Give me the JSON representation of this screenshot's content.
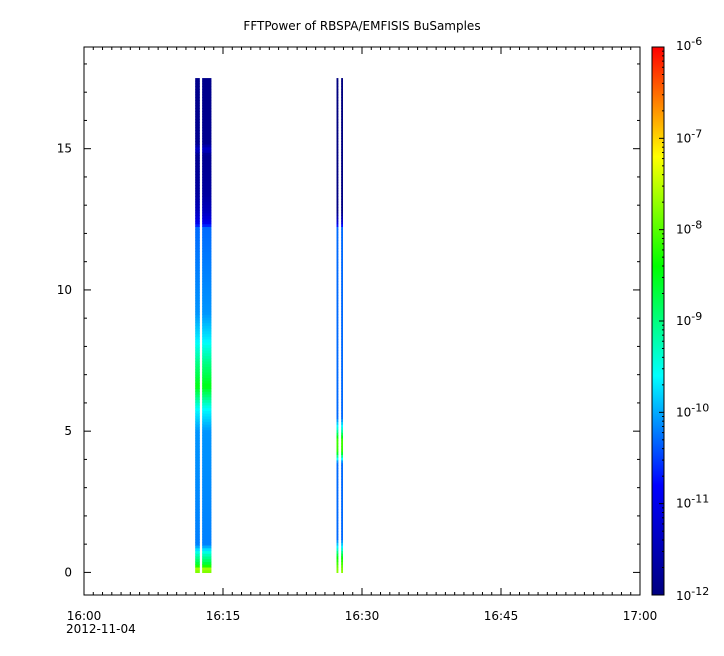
{
  "chart_data": {
    "type": "heatmap",
    "title": "FFTPower of RBSPA/EMFISIS  BuSamples",
    "xlabel": "",
    "ylabel": "",
    "x_axis": {
      "ticks": [
        "16:00",
        "16:15",
        "16:30",
        "16:45",
        "17:00"
      ],
      "date_label": "2012-11-04",
      "xlim": [
        "16:00",
        "17:00"
      ],
      "minor_tick_minutes": 1
    },
    "y_axis": {
      "ylim": [
        -0.8,
        18.6
      ],
      "ticks": [
        0,
        5,
        10,
        15
      ]
    },
    "colorbar": {
      "scale": "log",
      "range": [
        1e-12,
        1e-06
      ],
      "tick_bases": [
        "10",
        "10",
        "10",
        "10",
        "10",
        "10",
        "10"
      ],
      "tick_exponents": [
        "-12",
        "-11",
        "-10",
        "-9",
        "-8",
        "-7",
        "-6"
      ],
      "tick_values_log10": [
        -12,
        -11,
        -10,
        -9,
        -8,
        -7,
        -6
      ],
      "colormap": [
        "#000080",
        "#0000ff",
        "#00ffff",
        "#00ff00",
        "#ffff00",
        "#ff0000"
      ]
    },
    "series": [
      {
        "strips": [
          {
            "t_start": "16:12:00",
            "t_end": "16:12:30"
          },
          {
            "t_start": "16:12:45",
            "t_end": "16:13:45"
          }
        ],
        "f_max": 17.5,
        "profile": [
          {
            "f": 0.0,
            "log10_power": -8.0
          },
          {
            "f": 0.12,
            "log10_power": -7.5
          },
          {
            "f": 0.3,
            "log10_power": -8.6
          },
          {
            "f": 0.7,
            "log10_power": -9.4
          },
          {
            "f": 1.0,
            "log10_power": -10.2
          },
          {
            "f": 5.0,
            "log10_power": -10.1
          },
          {
            "f": 5.8,
            "log10_power": -9.6
          },
          {
            "f": 6.6,
            "log10_power": -8.5
          },
          {
            "f": 7.4,
            "log10_power": -9.0
          },
          {
            "f": 8.3,
            "log10_power": -9.7
          },
          {
            "f": 9.2,
            "log10_power": -10.1
          },
          {
            "f": 12.2,
            "log10_power": -10.3
          },
          {
            "f": 12.4,
            "log10_power": -11.0
          },
          {
            "f": 12.8,
            "log10_power": -11.4
          },
          {
            "f": 13.4,
            "log10_power": -11.7
          },
          {
            "f": 14.8,
            "log10_power": -11.85
          },
          {
            "f": 15.0,
            "log10_power": -11.3
          },
          {
            "f": 15.2,
            "log10_power": -11.85
          },
          {
            "f": 17.5,
            "log10_power": -11.9
          }
        ]
      },
      {
        "strips": [
          {
            "t_start": "16:27:15",
            "t_end": "16:27:27"
          },
          {
            "t_start": "16:27:45",
            "t_end": "16:27:57"
          }
        ],
        "f_max": 17.5,
        "profile": [
          {
            "f": 0.0,
            "log10_power": -7.7
          },
          {
            "f": 0.2,
            "log10_power": -7.9
          },
          {
            "f": 0.55,
            "log10_power": -8.4
          },
          {
            "f": 0.9,
            "log10_power": -9.6
          },
          {
            "f": 1.2,
            "log10_power": -10.3
          },
          {
            "f": 3.9,
            "log10_power": -10.3
          },
          {
            "f": 4.3,
            "log10_power": -8.2
          },
          {
            "f": 4.7,
            "log10_power": -8.1
          },
          {
            "f": 5.1,
            "log10_power": -9.4
          },
          {
            "f": 5.5,
            "log10_power": -10.3
          },
          {
            "f": 12.2,
            "log10_power": -10.3
          },
          {
            "f": 12.4,
            "log10_power": -11.2
          },
          {
            "f": 12.8,
            "log10_power": -11.95
          },
          {
            "f": 17.5,
            "log10_power": -12.0
          }
        ]
      }
    ]
  }
}
